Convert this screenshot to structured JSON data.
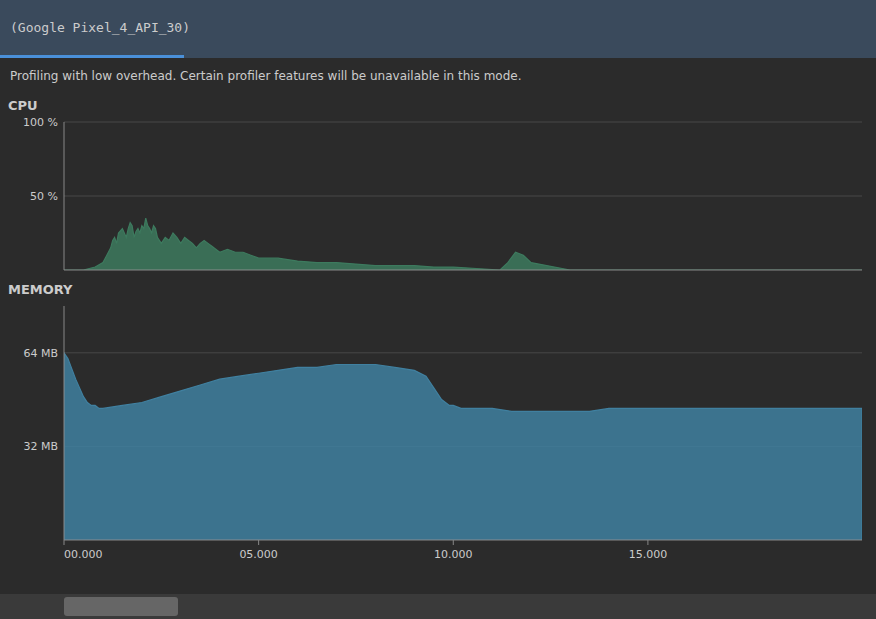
{
  "chart_data": [
    {
      "type": "area",
      "title": "CPU",
      "annotations": [
        "(Google Pixel_4_API_30)",
        "Profiling with low overhead. Certain profiler features will be unavailable in this mode."
      ],
      "color": "#3d7a5e",
      "x": [
        0,
        500,
        800,
        1000,
        1100,
        1200,
        1250,
        1300,
        1350,
        1400,
        1500,
        1600,
        1650,
        1700,
        1750,
        1800,
        1850,
        1900,
        1950,
        2000,
        2050,
        2100,
        2150,
        2200,
        2250,
        2300,
        2350,
        2400,
        2500,
        2600,
        2700,
        2800,
        2900,
        3000,
        3100,
        3200,
        3300,
        3400,
        3500,
        3600,
        3700,
        3800,
        3900,
        4000,
        4200,
        4400,
        4600,
        4800,
        5000,
        5500,
        6000,
        6500,
        7000,
        7500,
        8000,
        8500,
        9000,
        9500,
        10000,
        11200,
        11400,
        11600,
        11800,
        12000,
        13000,
        14000,
        15000,
        16000,
        17000,
        18000,
        19000,
        20000,
        20500
      ],
      "values": [
        0,
        0,
        2,
        5,
        10,
        15,
        20,
        22,
        18,
        25,
        28,
        22,
        28,
        32,
        30,
        22,
        26,
        28,
        25,
        30,
        28,
        35,
        30,
        28,
        25,
        30,
        28,
        22,
        18,
        22,
        20,
        25,
        22,
        18,
        22,
        20,
        18,
        15,
        18,
        20,
        18,
        16,
        14,
        12,
        14,
        12,
        12,
        10,
        8,
        8,
        6,
        5,
        5,
        4,
        3,
        3,
        3,
        2,
        2,
        0,
        5,
        12,
        10,
        5,
        0,
        0,
        0,
        0,
        0,
        0,
        0,
        0,
        0
      ],
      "xlim": [
        0,
        20500
      ],
      "ylim": [
        0,
        100
      ],
      "yticks": [
        {
          "value": 50,
          "label": "50 %"
        },
        {
          "value": 100,
          "label": "100 %"
        }
      ],
      "grid": true,
      "tick_labels": "y"
    },
    {
      "type": "area",
      "title": "MEMORY",
      "color": "#4080a0",
      "x": [
        0,
        100,
        300,
        500,
        600,
        700,
        800,
        900,
        1000,
        1500,
        2000,
        2500,
        3000,
        3500,
        4000,
        4500,
        5000,
        5500,
        6000,
        6500,
        7000,
        7500,
        8000,
        8500,
        9000,
        9300,
        9500,
        9700,
        9900,
        10000,
        10200,
        10500,
        11000,
        11500,
        12000,
        12500,
        13000,
        13500,
        14000,
        14500,
        15000,
        16000,
        17000,
        18000,
        19000,
        20000,
        20500
      ],
      "values": [
        64,
        62,
        55,
        49,
        47,
        46,
        46,
        45,
        45,
        46,
        47,
        49,
        51,
        53,
        55,
        56,
        57,
        58,
        59,
        59,
        60,
        60,
        60,
        59,
        58,
        56,
        52,
        48,
        46,
        46,
        45,
        45,
        45,
        44,
        44,
        44,
        44,
        44,
        45,
        45,
        45,
        45,
        45,
        45,
        45,
        45,
        45
      ],
      "xlim": [
        0,
        20500
      ],
      "xticks": [
        {
          "value": 0,
          "label": "00.000"
        },
        {
          "value": 5000,
          "label": "05.000"
        },
        {
          "value": 10000,
          "label": "10.000"
        },
        {
          "value": 15000,
          "label": "15.000"
        }
      ],
      "ylim": [
        0,
        80
      ],
      "yticks": [
        {
          "value": 32,
          "label": "32 MB"
        },
        {
          "value": 64,
          "label": "64 MB"
        }
      ],
      "grid": true
    }
  ]
}
